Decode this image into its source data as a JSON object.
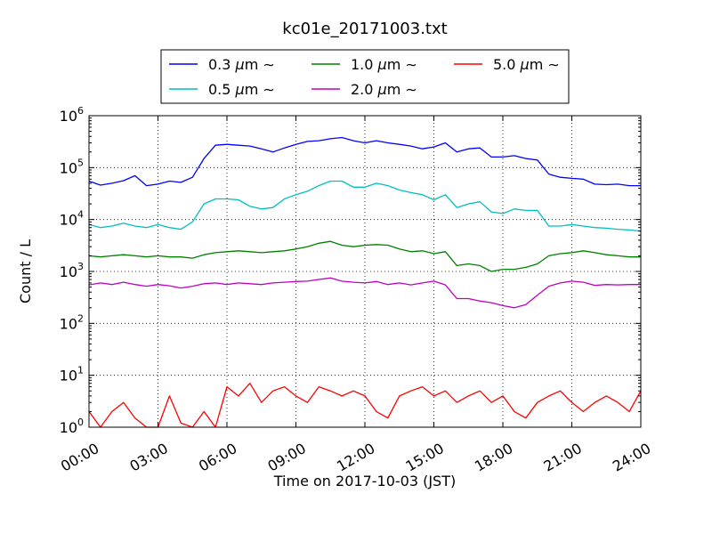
{
  "chart_data": {
    "type": "line",
    "title": "kc01e_20171003.txt",
    "xlabel": "Time on 2017-10-03 (JST)",
    "ylabel": "Count / L",
    "xlim": [
      "00:00",
      "24:00"
    ],
    "ylim": [
      1,
      1000000
    ],
    "yscale": "log",
    "grid": true,
    "legend_position": "top",
    "xticks": [
      "00:00",
      "03:00",
      "06:00",
      "09:00",
      "12:00",
      "15:00",
      "18:00",
      "21:00",
      "24:00"
    ],
    "yticks": [
      {
        "base": "10",
        "exp": "0",
        "value": 1
      },
      {
        "base": "10",
        "exp": "1",
        "value": 10
      },
      {
        "base": "10",
        "exp": "2",
        "value": 100
      },
      {
        "base": "10",
        "exp": "3",
        "value": 1000
      },
      {
        "base": "10",
        "exp": "4",
        "value": 10000
      },
      {
        "base": "10",
        "exp": "5",
        "value": 100000
      },
      {
        "base": "10",
        "exp": "6",
        "value": 1000000
      }
    ],
    "x_hours": [
      0,
      0.5,
      1,
      1.5,
      2,
      2.5,
      3,
      3.5,
      4,
      4.5,
      5,
      5.5,
      6,
      6.5,
      7,
      7.5,
      8,
      8.5,
      9,
      9.5,
      10,
      10.5,
      11,
      11.5,
      12,
      12.5,
      13,
      13.5,
      14,
      14.5,
      15,
      15.5,
      16,
      16.5,
      17,
      17.5,
      18,
      18.5,
      19,
      19.5,
      20,
      20.5,
      21,
      21.5,
      22,
      22.5,
      23,
      23.5,
      24
    ],
    "series": [
      {
        "name": "0.3",
        "label_rest": "m",
        "color": "#0000ff",
        "values": [
          55000,
          46000,
          50000,
          56000,
          70000,
          45000,
          48000,
          55000,
          52000,
          65000,
          150000,
          270000,
          280000,
          270000,
          260000,
          230000,
          200000,
          240000,
          280000,
          320000,
          330000,
          360000,
          380000,
          330000,
          300000,
          330000,
          300000,
          280000,
          260000,
          230000,
          250000,
          300000,
          200000,
          230000,
          240000,
          160000,
          160000,
          170000,
          150000,
          140000,
          75000,
          65000,
          62000,
          60000,
          48000,
          47000,
          48000,
          45000,
          45000
        ]
      },
      {
        "name": "0.5",
        "label_rest": "m",
        "color": "#00bfbf",
        "values": [
          8000,
          7000,
          7500,
          8500,
          7500,
          7000,
          8000,
          7000,
          6500,
          9000,
          20000,
          25000,
          25000,
          24000,
          18000,
          16000,
          17000,
          25000,
          30000,
          35000,
          45000,
          55000,
          55000,
          42000,
          42000,
          50000,
          45000,
          37000,
          33000,
          30000,
          24000,
          30000,
          17000,
          20000,
          22000,
          14000,
          13000,
          16000,
          15000,
          15000,
          7500,
          7500,
          8000,
          7500,
          7000,
          6800,
          6500,
          6300,
          6000
        ]
      },
      {
        "name": "1.0",
        "label_rest": "m",
        "color": "#008000",
        "values": [
          2000,
          1900,
          2000,
          2100,
          2000,
          1900,
          2000,
          1900,
          1900,
          1800,
          2100,
          2300,
          2400,
          2500,
          2400,
          2300,
          2400,
          2500,
          2700,
          3000,
          3500,
          3800,
          3200,
          3000,
          3200,
          3300,
          3200,
          2700,
          2400,
          2500,
          2200,
          2400,
          1300,
          1400,
          1300,
          1000,
          1100,
          1100,
          1200,
          1400,
          2000,
          2200,
          2300,
          2500,
          2300,
          2100,
          2000,
          1900,
          1900
        ]
      },
      {
        "name": "2.0",
        "label_rest": "m",
        "color": "#bf00bf",
        "values": [
          550,
          600,
          560,
          620,
          560,
          520,
          560,
          530,
          480,
          520,
          580,
          600,
          560,
          600,
          580,
          560,
          600,
          620,
          640,
          650,
          700,
          750,
          650,
          620,
          600,
          640,
          560,
          600,
          550,
          600,
          650,
          550,
          300,
          300,
          270,
          250,
          220,
          200,
          230,
          350,
          520,
          600,
          650,
          620,
          540,
          560,
          550,
          560,
          560
        ]
      },
      {
        "name": "5.0",
        "label_rest": "m",
        "color": "#ff0000",
        "values": [
          2,
          1,
          2,
          3,
          1.5,
          1,
          1,
          4,
          1.2,
          1,
          2,
          1,
          6,
          4,
          7,
          3,
          5,
          6,
          4,
          3,
          6,
          5,
          4,
          5,
          4,
          2,
          1.5,
          4,
          5,
          6,
          4,
          5,
          3,
          4,
          5,
          3,
          4,
          2,
          1.5,
          3,
          4,
          5,
          3,
          2,
          3,
          4,
          3,
          2,
          5
        ]
      }
    ]
  }
}
